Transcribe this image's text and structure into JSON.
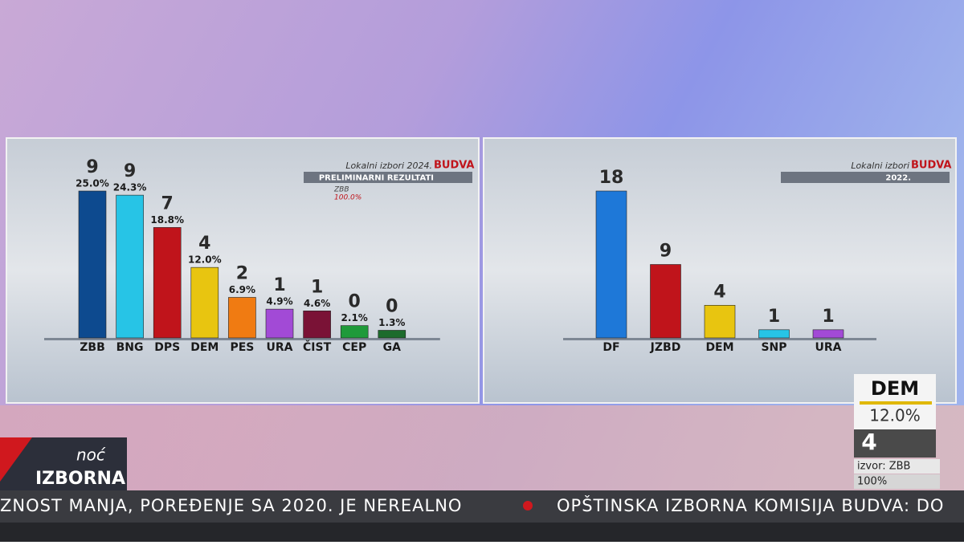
{
  "chart_data": [
    {
      "type": "bar",
      "title": "Lokalni izbori 2024.",
      "place": "BUDVA",
      "subtitle": "PRELIMINARNI REZULTATI",
      "notes": [
        "ZBB",
        "100.0%"
      ],
      "categories": [
        "ZBB",
        "BNG",
        "DPS",
        "DEM",
        "PES",
        "URA",
        "ČIST",
        "CEP",
        "GA"
      ],
      "values": [
        25.0,
        24.3,
        18.8,
        12.0,
        6.9,
        4.9,
        4.6,
        2.1,
        1.3
      ],
      "value_labels": [
        "25.0%",
        "24.3%",
        "18.8%",
        "12.0%",
        "6.9%",
        "4.9%",
        "4.6%",
        "2.1%",
        "1.3%"
      ],
      "seats": [
        9,
        9,
        7,
        4,
        2,
        1,
        1,
        0,
        0
      ],
      "colors": [
        "#0d4a8f",
        "#27c4e6",
        "#c0141b",
        "#e8c510",
        "#f07b12",
        "#a24ad6",
        "#7a1236",
        "#1f9a3a",
        "#1d6b2c"
      ]
    },
    {
      "type": "bar",
      "title": "Lokalni izbori",
      "place": "BUDVA",
      "subtitle": "2022.",
      "categories": [
        "DF",
        "JZBD",
        "DEM",
        "SNP",
        "URA"
      ],
      "values": [
        18,
        9,
        4,
        1,
        1
      ],
      "colors": [
        "#1e78d8",
        "#c0141b",
        "#e8c510",
        "#27c4e6",
        "#a24ad6"
      ]
    }
  ],
  "side_box": {
    "party": "DEM",
    "percent": "12.0%",
    "seats": "4",
    "source": "izvor: ZBB",
    "counted": "100%"
  },
  "logo": {
    "small": "noć",
    "big": "IZBORNA"
  },
  "ticker": [
    "ZNOST MANJA, POREĐENJE SA 2020. JE NEREALNO",
    "OPŠTINSKA IZBORNA KOMISIJA BUDVA: DO"
  ]
}
